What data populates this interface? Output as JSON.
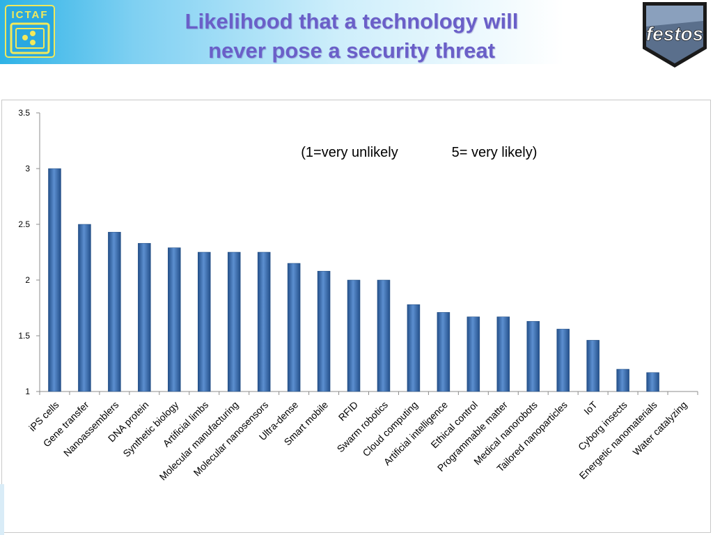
{
  "header": {
    "title_line1": "Likelihood that a technology will",
    "title_line2": "never pose a security threat",
    "left_logo_text": "ICTAF",
    "right_logo_text": "festos"
  },
  "colors": {
    "title": "#6a5fc8",
    "bar": "#2f5f9f",
    "bar_highlight": "#5c8fd0"
  },
  "chart_data": {
    "type": "bar",
    "title": "",
    "xlabel": "",
    "ylabel": "",
    "annotation_left": "(1=very unlikely",
    "annotation_right": "5= very likely)",
    "ylim": [
      1,
      3.5
    ],
    "yticks": [
      1,
      1.5,
      2,
      2.5,
      3,
      3.5
    ],
    "ytick_labels": [
      "1",
      "1.5",
      "2",
      "2.5",
      "3",
      "3.5"
    ],
    "grid": false,
    "categories": [
      "iPS cells",
      "Gene transfer",
      "Nanoassemblers",
      "DNA protein",
      "Synthetic biology",
      "Artificial limbs",
      "Molecular manufacturing",
      "Molecular nanosensors",
      "Ultra-dense",
      "Smart mobile",
      "RFID",
      "Swarm robotics",
      "Cloud computing",
      "Artificial intelligence",
      "Ethical control",
      "Programmable matter",
      "Medical nanorobots",
      "Tailored nanoparticles",
      "IoT",
      "Cyborg insects",
      "Energetic nanomaterials",
      "Water catalyzing"
    ],
    "values": [
      3.0,
      2.5,
      2.43,
      2.33,
      2.29,
      2.25,
      2.25,
      2.25,
      2.15,
      2.08,
      2.0,
      2.0,
      1.78,
      1.71,
      1.67,
      1.67,
      1.63,
      1.56,
      1.46,
      1.2,
      1.17,
      1.0
    ]
  }
}
